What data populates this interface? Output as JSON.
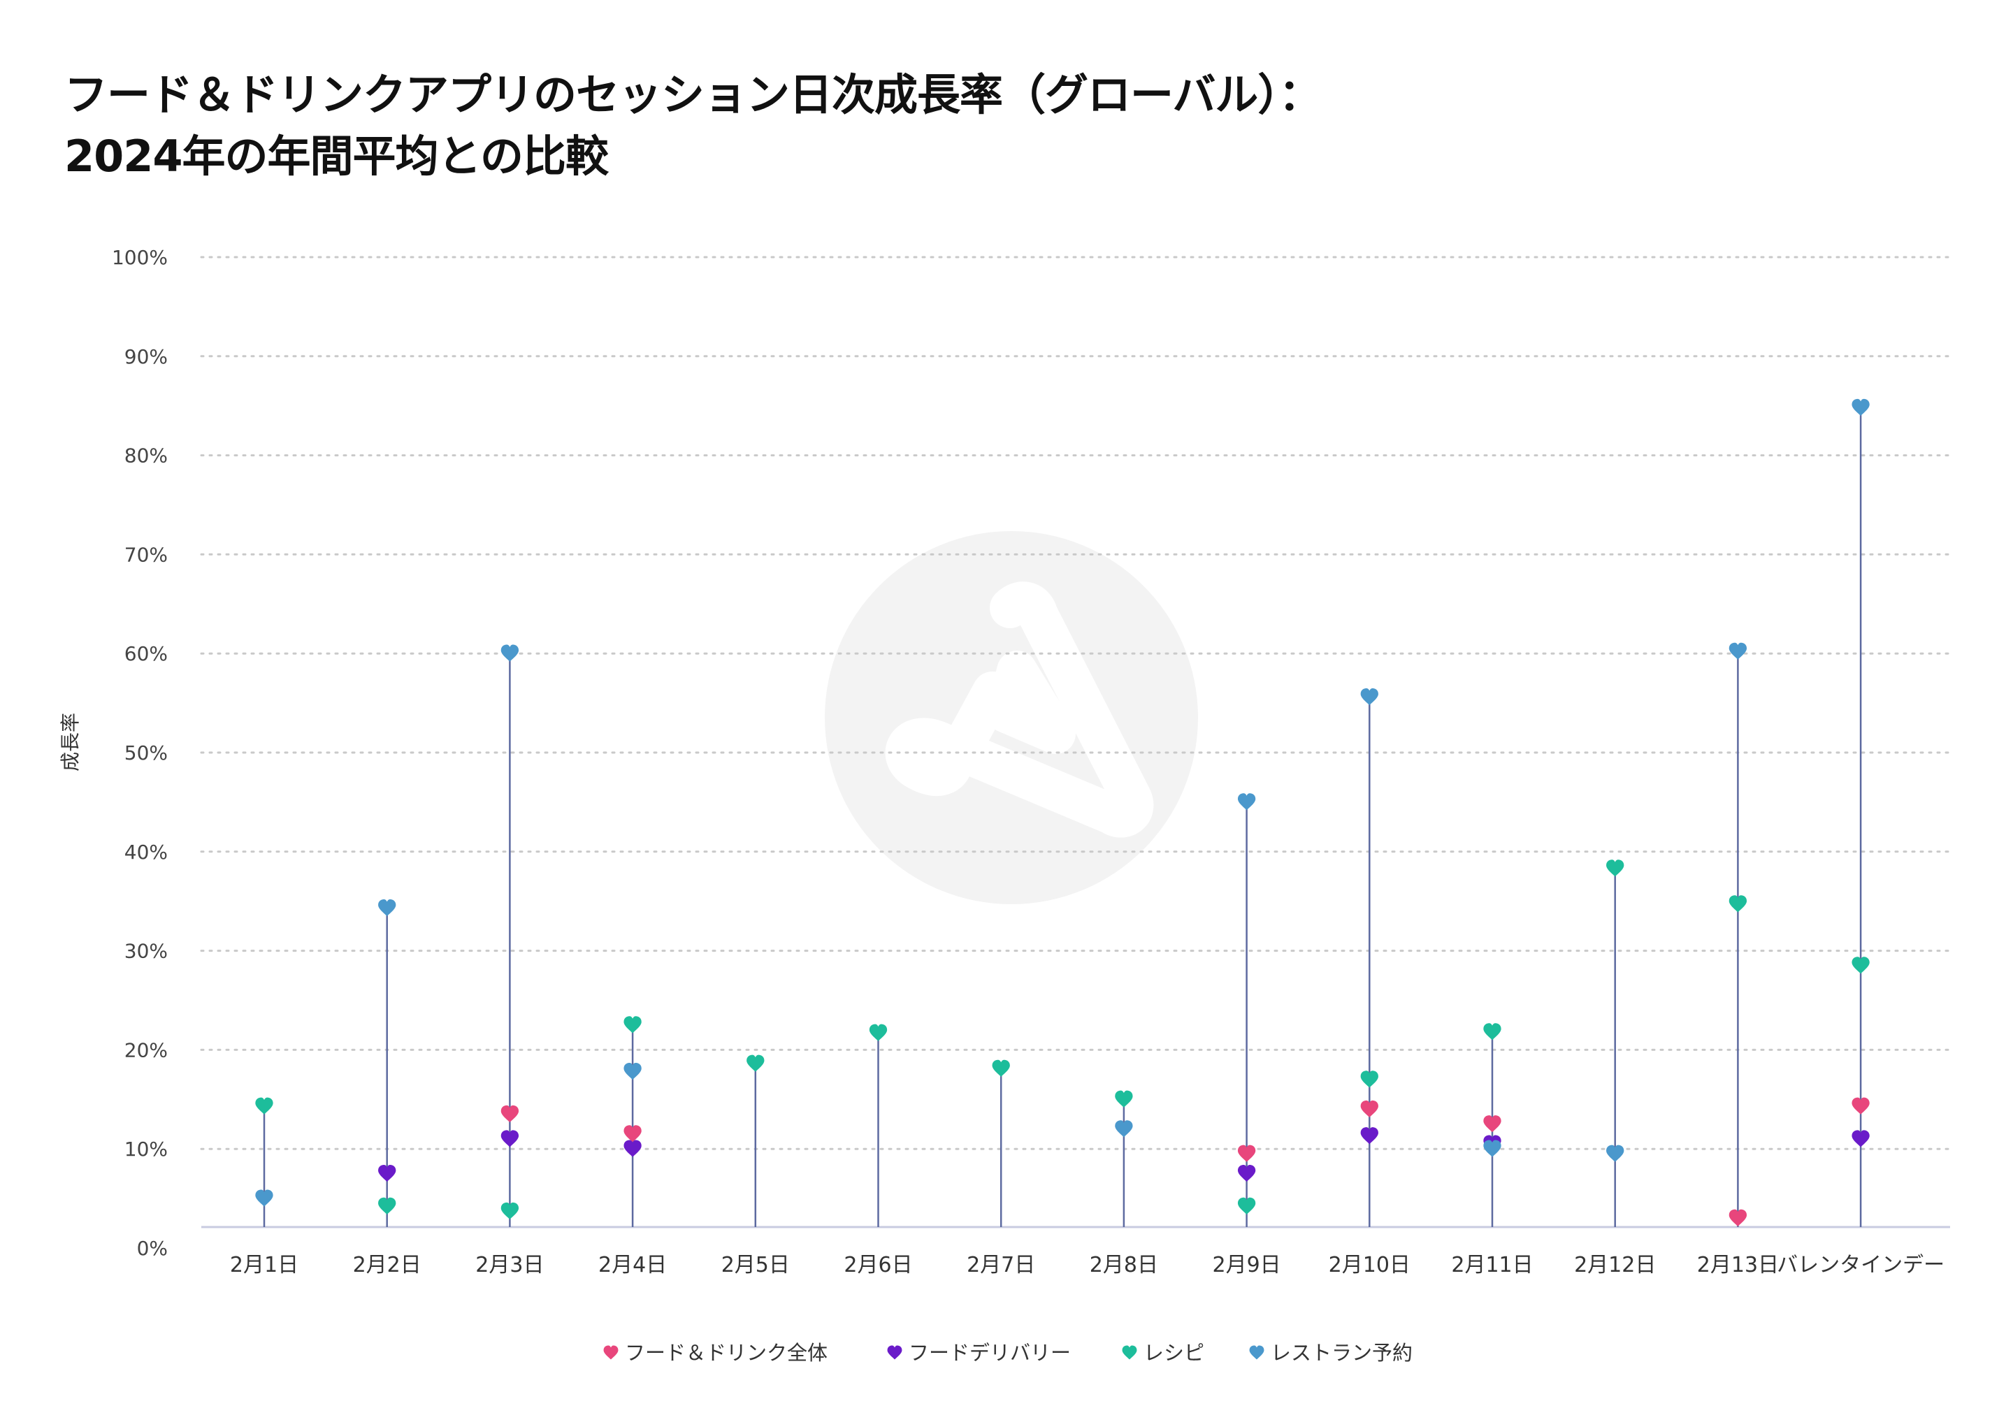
{
  "chart_data": {
    "type": "scatter",
    "title": "フード＆ドリンクアプリのセッション日次成長率（グローバル）：",
    "subtitle": "2024年の年間平均との比較",
    "xlabel": "",
    "ylabel": "成長率",
    "ylim": [
      0,
      100
    ],
    "y_ticks": [
      "0%",
      "10%",
      "20%",
      "30%",
      "40%",
      "50%",
      "60%",
      "70%",
      "80%",
      "90%",
      "100%"
    ],
    "grid": true,
    "legend_position": "bottom",
    "marker": "heart",
    "stems": true,
    "categories": [
      "2月1日",
      "2月2日",
      "2月3日",
      "2月4日",
      "2月5日",
      "2月6日",
      "2月7日",
      "2月8日",
      "2月9日",
      "2月10日",
      "2月11日",
      "2月12日",
      "2月13日",
      "バレンタインデー"
    ],
    "series": [
      {
        "name": "フード＆ドリンク全体",
        "color": "#e8467c",
        "values": [
          null,
          null,
          13.5,
          11.5,
          null,
          null,
          null,
          null,
          9.5,
          14,
          12.5,
          null,
          3,
          14.3
        ]
      },
      {
        "name": "フードデリバリー",
        "color": "#6a1bc9",
        "values": [
          null,
          7.5,
          11,
          10,
          null,
          null,
          null,
          null,
          7.5,
          11.3,
          10.5,
          null,
          null,
          11
        ]
      },
      {
        "name": "レシピ",
        "color": "#1dbd9b",
        "values": [
          14.3,
          4.2,
          3.7,
          22.5,
          18.6,
          21.7,
          18.1,
          15,
          4.2,
          17,
          21.8,
          38.3,
          34.7,
          28.5
        ]
      },
      {
        "name": "レストラン予約",
        "color": "#4a98cc",
        "values": [
          5,
          34.3,
          60,
          17.8,
          null,
          null,
          null,
          12,
          45,
          55.6,
          10,
          9.5,
          60.2,
          84.8
        ]
      }
    ],
    "stem_color": "#5d6aa0"
  },
  "watermark": {
    "icon": "app-logo-icon"
  }
}
